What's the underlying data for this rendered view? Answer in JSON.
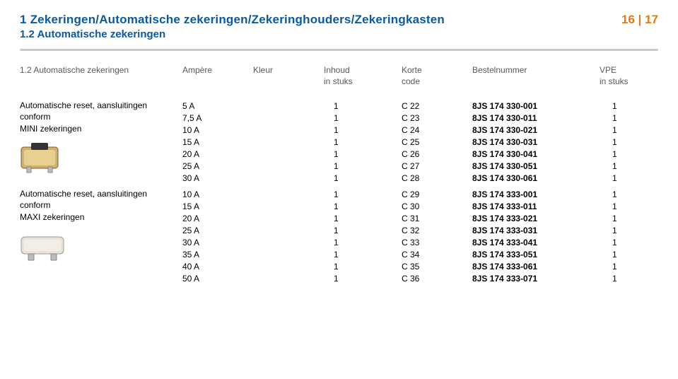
{
  "header": {
    "title1": "1 Zekeringen/Automatische zekeringen/Zekeringhouders/Zekeringkasten",
    "title2": "1.2 Automatische zekeringen",
    "pagenum": "16 | 17"
  },
  "columns": {
    "c0": "1.2 Automatische zekeringen",
    "c1": "Ampère",
    "c2": "Kleur",
    "c3_l1": "Inhoud",
    "c3_l2": "in stuks",
    "c4_l1": "Korte",
    "c4_l2": "code",
    "c5": "Bestelnummer",
    "c6_l1": "VPE",
    "c6_l2": "in stuks"
  },
  "sections": [
    {
      "desc_lines": [
        "Automatische reset, aansluitingen",
        "conform",
        "MINI zekeringen"
      ],
      "img": "mini",
      "rows": [
        {
          "amp": "5 A",
          "kleur": "",
          "inh": "1",
          "code": "C 22",
          "best": "8JS 174 330-001",
          "vpe": "1"
        },
        {
          "amp": "7,5 A",
          "kleur": "",
          "inh": "1",
          "code": "C 23",
          "best": "8JS 174 330-011",
          "vpe": "1"
        },
        {
          "amp": "10 A",
          "kleur": "",
          "inh": "1",
          "code": "C 24",
          "best": "8JS 174 330-021",
          "vpe": "1"
        },
        {
          "amp": "15 A",
          "kleur": "",
          "inh": "1",
          "code": "C 25",
          "best": "8JS 174 330-031",
          "vpe": "1"
        },
        {
          "amp": "20 A",
          "kleur": "",
          "inh": "1",
          "code": "C 26",
          "best": "8JS 174 330-041",
          "vpe": "1"
        },
        {
          "amp": "25 A",
          "kleur": "",
          "inh": "1",
          "code": "C 27",
          "best": "8JS 174 330-051",
          "vpe": "1"
        },
        {
          "amp": "30 A",
          "kleur": "",
          "inh": "1",
          "code": "C 28",
          "best": "8JS 174 330-061",
          "vpe": "1"
        }
      ]
    },
    {
      "desc_lines": [
        "Automatische reset, aansluitingen",
        "conform",
        "MAXI zekeringen"
      ],
      "img": "maxi",
      "rows": [
        {
          "amp": "10 A",
          "kleur": "",
          "inh": "1",
          "code": "C 29",
          "best": "8JS 174 333-001",
          "vpe": "1"
        },
        {
          "amp": "15 A",
          "kleur": "",
          "inh": "1",
          "code": "C 30",
          "best": "8JS 174 333-011",
          "vpe": "1"
        },
        {
          "amp": "20 A",
          "kleur": "",
          "inh": "1",
          "code": "C 31",
          "best": "8JS 174 333-021",
          "vpe": "1"
        },
        {
          "amp": "25 A",
          "kleur": "",
          "inh": "1",
          "code": "C 32",
          "best": "8JS 174 333-031",
          "vpe": "1"
        },
        {
          "amp": "30 A",
          "kleur": "",
          "inh": "1",
          "code": "C 33",
          "best": "8JS 174 333-041",
          "vpe": "1"
        },
        {
          "amp": "35 A",
          "kleur": "",
          "inh": "1",
          "code": "C 34",
          "best": "8JS 174 333-051",
          "vpe": "1"
        },
        {
          "amp": "40 A",
          "kleur": "",
          "inh": "1",
          "code": "C 35",
          "best": "8JS 174 333-061",
          "vpe": "1"
        },
        {
          "amp": "50 A",
          "kleur": "",
          "inh": "1",
          "code": "C 36",
          "best": "8JS 174 333-071",
          "vpe": "1"
        }
      ]
    }
  ],
  "colors": {
    "heading": "#0b5aa0",
    "pagenum": "#e77817",
    "sep": "#c9c9c9",
    "colhead": "#5a5a5a",
    "bg": "#ffffff"
  }
}
